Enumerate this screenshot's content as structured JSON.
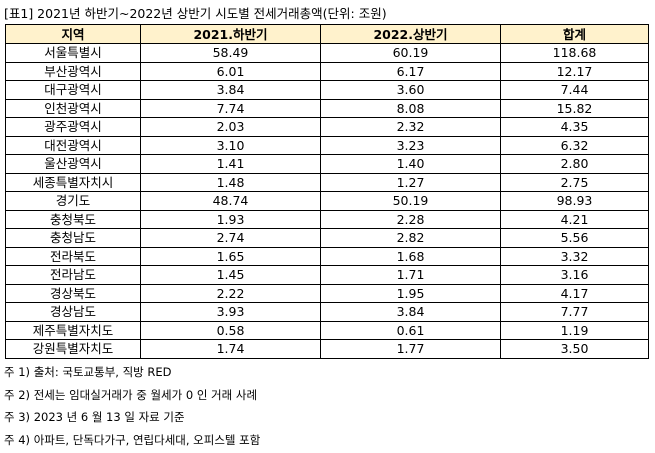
{
  "title": "[표1] 2021년 하반기~2022년 상반기 시도별 전세거래총액(단위: 조원)",
  "table": {
    "header": [
      "지역",
      "2021.하반기",
      "2022.상반기",
      "합계"
    ],
    "rows": [
      [
        "서울특별시",
        "58.49",
        "60.19",
        "118.68"
      ],
      [
        "부산광역시",
        "6.01",
        "6.17",
        "12.17"
      ],
      [
        "대구광역시",
        "3.84",
        "3.60",
        "7.44"
      ],
      [
        "인천광역시",
        "7.74",
        "8.08",
        "15.82"
      ],
      [
        "광주광역시",
        "2.03",
        "2.32",
        "4.35"
      ],
      [
        "대전광역시",
        "3.10",
        "3.23",
        "6.32"
      ],
      [
        "울산광역시",
        "1.41",
        "1.40",
        "2.80"
      ],
      [
        "세종특별자치시",
        "1.48",
        "1.27",
        "2.75"
      ],
      [
        "경기도",
        "48.74",
        "50.19",
        "98.93"
      ],
      [
        "충청북도",
        "1.93",
        "2.28",
        "4.21"
      ],
      [
        "충청남도",
        "2.74",
        "2.82",
        "5.56"
      ],
      [
        "전라북도",
        "1.65",
        "1.68",
        "3.32"
      ],
      [
        "전라남도",
        "1.45",
        "1.71",
        "3.16"
      ],
      [
        "경상북도",
        "2.22",
        "1.95",
        "4.17"
      ],
      [
        "경상남도",
        "3.93",
        "3.84",
        "7.77"
      ],
      [
        "제주특별자치도",
        "0.58",
        "0.61",
        "1.19"
      ],
      [
        "강원특별자치도",
        "1.74",
        "1.77",
        "3.50"
      ]
    ]
  },
  "notes": [
    "주 1) 출처: 국토교통부, 직방 RED",
    "주 2) 전세는 임대실거래가 중 월세가 0 인 거래 사례",
    "주 3) 2023 년 6 월 13 일 자료 기준",
    "주 4) 아파트, 단독다가구, 연립다세대, 오피스텔 포함"
  ]
}
